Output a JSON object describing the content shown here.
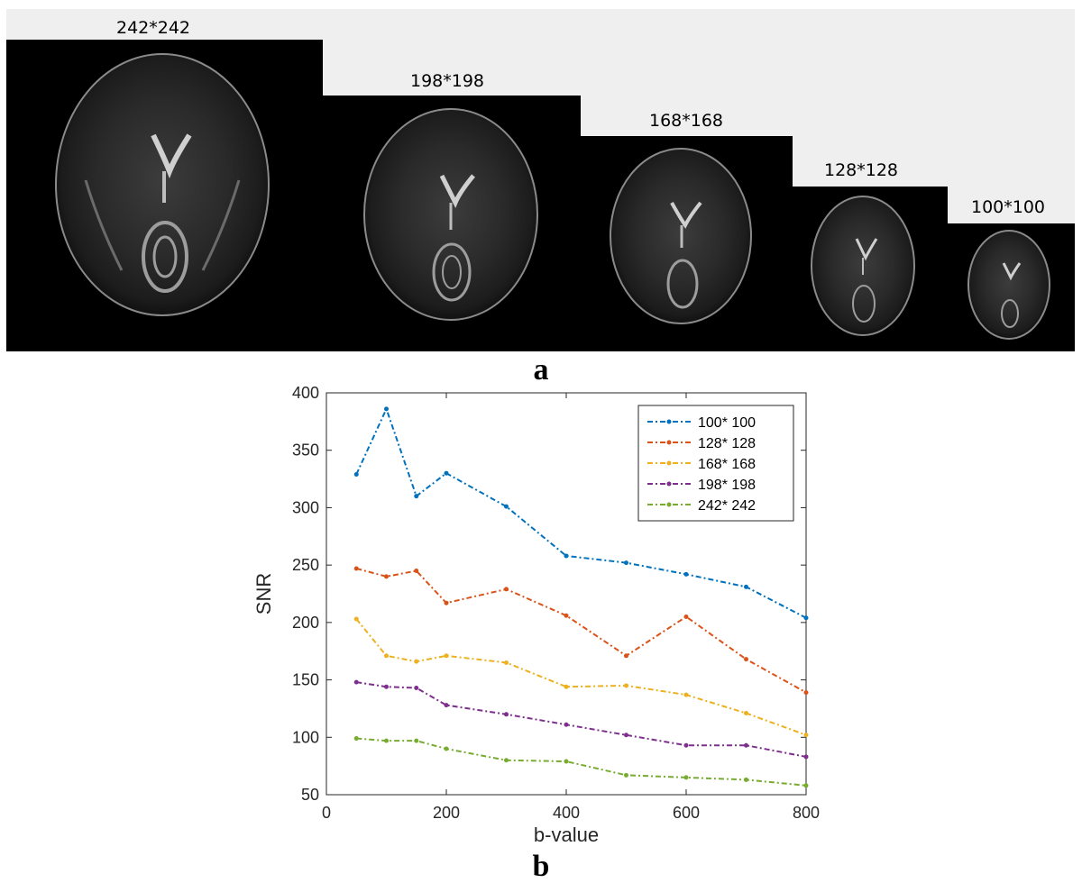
{
  "panel_a": {
    "letter": "a",
    "images": [
      {
        "label": "242*242",
        "size": 242
      },
      {
        "label": "198*198",
        "size": 198
      },
      {
        "label": "168*168",
        "size": 168
      },
      {
        "label": "128*128",
        "size": 128
      },
      {
        "label": "100*100",
        "size": 100
      }
    ]
  },
  "panel_b": {
    "letter": "b"
  },
  "chart_data": {
    "type": "line",
    "xlabel": "b-value",
    "ylabel": "SNR",
    "xlim": [
      0,
      800
    ],
    "ylim": [
      50,
      400
    ],
    "xticks": [
      0,
      200,
      400,
      600,
      800
    ],
    "yticks": [
      50,
      100,
      150,
      200,
      250,
      300,
      350,
      400
    ],
    "legend_position": "top-right",
    "x": [
      50,
      100,
      150,
      200,
      300,
      400,
      500,
      600,
      700,
      800
    ],
    "series": [
      {
        "name": "100* 100",
        "color": "#0072BD",
        "values": [
          329,
          386,
          310,
          330,
          301,
          258,
          252,
          242,
          231,
          204
        ]
      },
      {
        "name": "128* 128",
        "color": "#D95319",
        "values": [
          247,
          240,
          245,
          217,
          229,
          206,
          171,
          205,
          168,
          139
        ]
      },
      {
        "name": "168* 168",
        "color": "#EDB120",
        "values": [
          203,
          171,
          166,
          171,
          165,
          144,
          145,
          137,
          121,
          102
        ]
      },
      {
        "name": "198* 198",
        "color": "#7E2F8E",
        "values": [
          148,
          144,
          143,
          128,
          120,
          111,
          102,
          93,
          93,
          83
        ]
      },
      {
        "name": "242* 242",
        "color": "#77AC30",
        "values": [
          99,
          97,
          97,
          90,
          80,
          79,
          67,
          65,
          63,
          58
        ]
      }
    ]
  }
}
